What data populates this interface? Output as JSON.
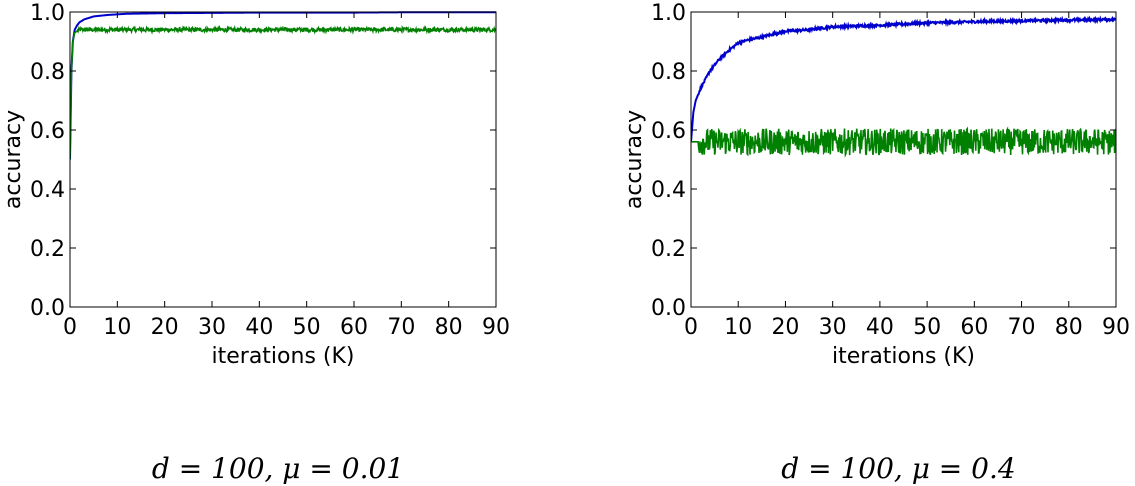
{
  "chart_data": [
    {
      "type": "line",
      "xlabel": "iterations (K)",
      "ylabel": "accuracy",
      "xlim": [
        0,
        90
      ],
      "ylim": [
        0,
        1.0
      ],
      "x_ticks": [
        "0",
        "10",
        "20",
        "30",
        "40",
        "50",
        "60",
        "70",
        "80",
        "90"
      ],
      "y_ticks": [
        "0.0",
        "0.2",
        "0.4",
        "0.6",
        "0.8",
        "1.0"
      ],
      "caption": "d = 100,  μ = 0.01",
      "grid": false,
      "series": [
        {
          "color": "#0000cc",
          "x": [
            0,
            0.3,
            0.6,
            1,
            1.5,
            2,
            3,
            5,
            8,
            12,
            20,
            30,
            40,
            50,
            60,
            70,
            80,
            90
          ],
          "y": [
            0.5,
            0.8,
            0.9,
            0.94,
            0.955,
            0.965,
            0.975,
            0.985,
            0.99,
            0.994,
            0.996,
            0.997,
            0.998,
            0.998,
            0.998,
            0.999,
            0.999,
            0.999
          ]
        },
        {
          "color": "#008000",
          "x": [
            0,
            0.3,
            0.6,
            1,
            2,
            5,
            10,
            20,
            30,
            40,
            50,
            60,
            70,
            80,
            90
          ],
          "y": [
            0.5,
            0.8,
            0.9,
            0.93,
            0.94,
            0.94,
            0.94,
            0.94,
            0.94,
            0.94,
            0.94,
            0.94,
            0.94,
            0.94,
            0.94
          ],
          "noise": 0.007
        }
      ]
    },
    {
      "type": "line",
      "xlabel": "iterations (K)",
      "ylabel": "accuracy",
      "xlim": [
        0,
        90
      ],
      "ylim": [
        0,
        1.0
      ],
      "x_ticks": [
        "0",
        "10",
        "20",
        "30",
        "40",
        "50",
        "60",
        "70",
        "80",
        "90"
      ],
      "y_ticks": [
        "0.0",
        "0.2",
        "0.4",
        "0.6",
        "0.8",
        "1.0"
      ],
      "caption": "d = 100,  μ = 0.4",
      "grid": false,
      "series": [
        {
          "color": "#0000cc",
          "x": [
            0,
            0.5,
            1,
            2,
            3,
            4,
            5,
            6,
            8,
            10,
            12,
            15,
            20,
            25,
            30,
            40,
            50,
            60,
            70,
            80,
            90
          ],
          "y": [
            0.56,
            0.66,
            0.7,
            0.74,
            0.77,
            0.8,
            0.82,
            0.84,
            0.87,
            0.895,
            0.905,
            0.915,
            0.935,
            0.94,
            0.95,
            0.955,
            0.963,
            0.967,
            0.97,
            0.973,
            0.975
          ],
          "noise": 0.004
        },
        {
          "color": "#008000",
          "x": [
            0,
            10,
            20,
            30,
            40,
            50,
            60,
            70,
            80,
            90
          ],
          "y": [
            0.56,
            0.56,
            0.56,
            0.56,
            0.56,
            0.56,
            0.56,
            0.56,
            0.56,
            0.56
          ],
          "noise": 0.045
        }
      ]
    }
  ]
}
